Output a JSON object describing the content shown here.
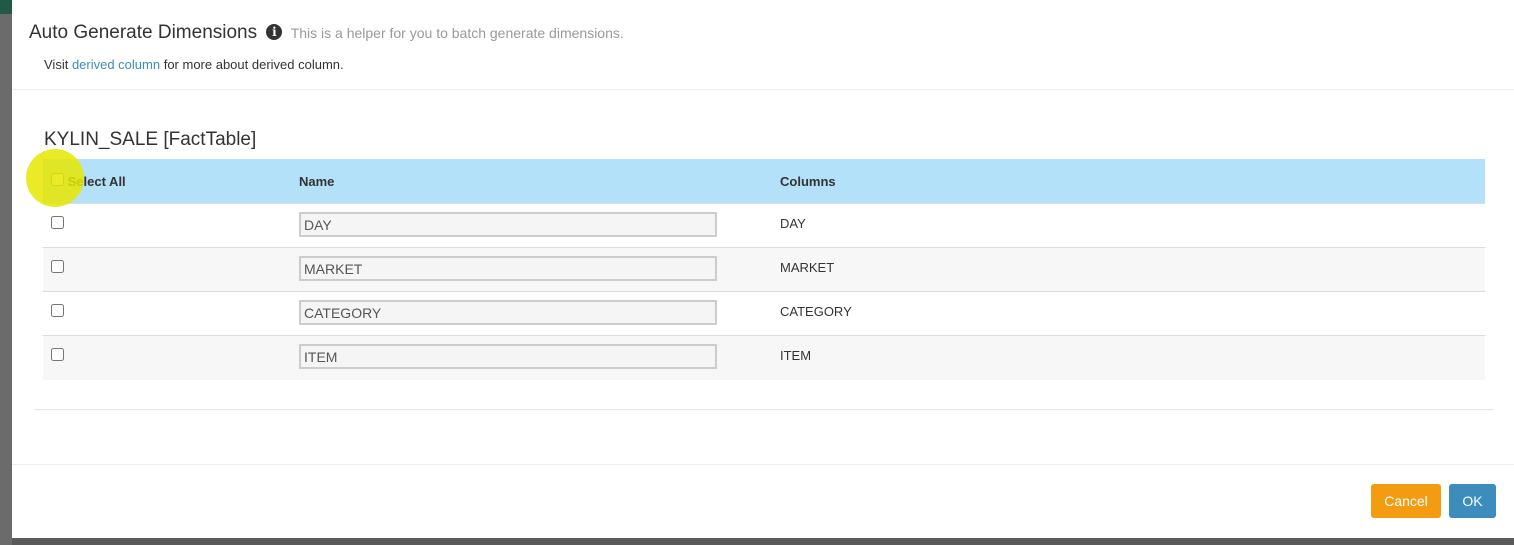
{
  "dialog": {
    "title": "Auto Generate Dimensions",
    "subtitle": "This is a helper for you to batch generate dimensions.",
    "visit_prefix": "Visit ",
    "visit_link": "derived column",
    "visit_suffix": " for more about derived column.",
    "info_icon": "info-circle-icon"
  },
  "table": {
    "title": "KYLIN_SALE [FactTable]",
    "headers": {
      "select_all": "Select All",
      "name": "Name",
      "columns": "Columns"
    },
    "header_color": "#b3e1f9",
    "rows": [
      {
        "name": "DAY",
        "column": "DAY",
        "checked": false
      },
      {
        "name": "MARKET",
        "column": "MARKET",
        "checked": false
      },
      {
        "name": "CATEGORY",
        "column": "CATEGORY",
        "checked": false
      },
      {
        "name": "ITEM",
        "column": "ITEM",
        "checked": false
      }
    ]
  },
  "footer": {
    "cancel_label": "Cancel",
    "ok_label": "OK",
    "cancel_color": "#f39c12",
    "ok_color": "#3c8dbc"
  }
}
